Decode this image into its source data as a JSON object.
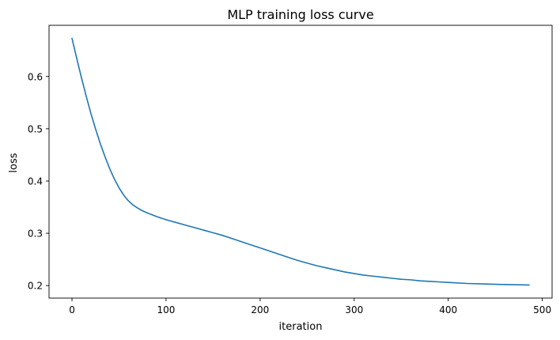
{
  "chart_data": {
    "type": "line",
    "title": "MLP training loss curve",
    "xlabel": "iteration",
    "ylabel": "loss",
    "xlim": [
      -24.4,
      510.4
    ],
    "ylim": [
      0.176,
      0.698
    ],
    "xticks": [
      0,
      100,
      200,
      300,
      400,
      500
    ],
    "yticks": [
      0.2,
      0.3,
      0.4,
      0.5,
      0.6
    ],
    "grid": false,
    "legend": "none",
    "series": [
      {
        "color": "#1f77b4",
        "x": [
          0,
          5,
          10,
          15,
          20,
          25,
          30,
          35,
          40,
          45,
          50,
          55,
          60,
          65,
          70,
          75,
          80,
          90,
          100,
          110,
          120,
          130,
          140,
          150,
          160,
          170,
          180,
          190,
          200,
          210,
          220,
          230,
          240,
          250,
          260,
          270,
          280,
          290,
          300,
          310,
          320,
          330,
          340,
          350,
          360,
          370,
          380,
          390,
          400,
          420,
          440,
          460,
          486
        ],
        "y": [
          0.673,
          0.635,
          0.598,
          0.563,
          0.53,
          0.5,
          0.472,
          0.447,
          0.424,
          0.404,
          0.387,
          0.373,
          0.362,
          0.354,
          0.348,
          0.343,
          0.339,
          0.332,
          0.326,
          0.321,
          0.316,
          0.311,
          0.306,
          0.301,
          0.296,
          0.29,
          0.284,
          0.278,
          0.272,
          0.266,
          0.26,
          0.254,
          0.248,
          0.243,
          0.238,
          0.234,
          0.23,
          0.226,
          0.223,
          0.22,
          0.218,
          0.216,
          0.214,
          0.212,
          0.211,
          0.209,
          0.208,
          0.207,
          0.206,
          0.204,
          0.203,
          0.202,
          0.201
        ]
      }
    ]
  }
}
